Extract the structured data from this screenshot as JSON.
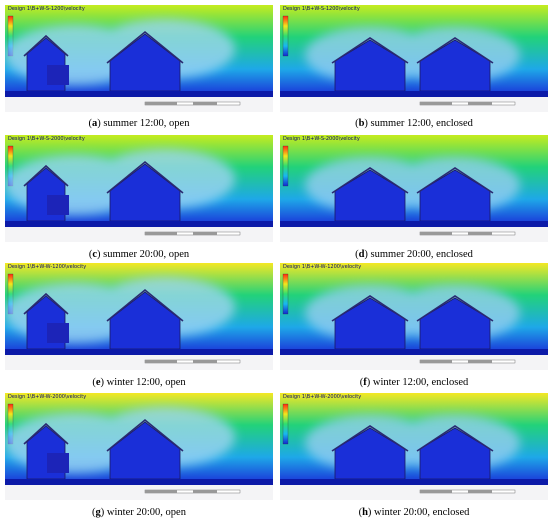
{
  "panels": [
    {
      "id": "a",
      "title": "Design 1\\B+W-S-1200\\velocity",
      "season": "summer",
      "letter": "a",
      "caption": "summer 12:00, open",
      "type": "open"
    },
    {
      "id": "b",
      "title": "Design 1\\B+W-S-1200\\velocity",
      "season": "summer",
      "letter": "b",
      "caption": "summer 12:00, enclosed",
      "type": "enclosed"
    },
    {
      "id": "c",
      "title": "Design 1\\B+W-S-2000\\velocity",
      "season": "summer",
      "letter": "c",
      "caption": "summer 20:00, open",
      "type": "open"
    },
    {
      "id": "d",
      "title": "Design 1\\B+W-S-2000\\velocity",
      "season": "summer",
      "letter": "d",
      "caption": "summer 20:00, enclosed",
      "type": "enclosed"
    },
    {
      "id": "e",
      "title": "Design 1\\B+W-W-1200\\velocity",
      "season": "winter",
      "letter": "e",
      "caption": "winter 12:00, open",
      "type": "open"
    },
    {
      "id": "f",
      "title": "Design 1\\B+W-W-1200\\velocity",
      "season": "winter",
      "letter": "f",
      "caption": "winter 12:00, enclosed",
      "type": "enclosed"
    },
    {
      "id": "g",
      "title": "Design 1\\B+W-W-2000\\velocity",
      "season": "winter",
      "letter": "g",
      "caption": "winter 20:00, open",
      "type": "open"
    },
    {
      "id": "h",
      "title": "Design 1\\B+W-W-2000\\velocity",
      "season": "winter",
      "letter": "h",
      "caption": "winter 20:00, enclosed",
      "type": "enclosed"
    }
  ],
  "colors": {
    "sky_summer_top": "#c6ec1e",
    "sky_winter_top": "#f4e824",
    "field_mid": "#22d27a",
    "field_low": "#1ea8e8",
    "calm": "#1a2fd8",
    "ground": "#0c1aa8"
  }
}
